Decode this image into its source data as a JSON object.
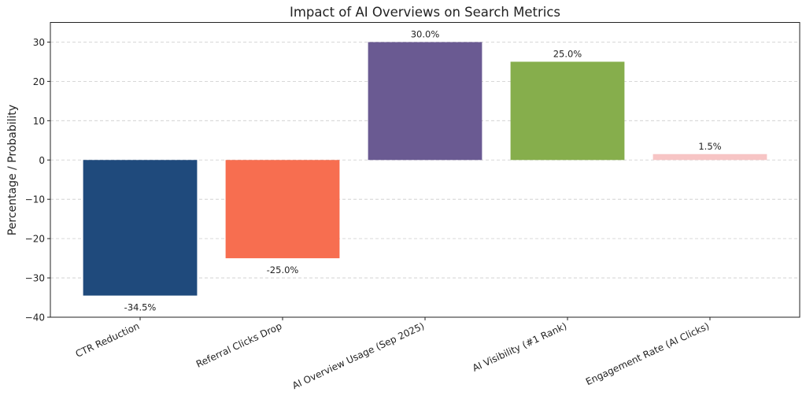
{
  "chart_data": {
    "type": "bar",
    "title": "Impact of AI Overviews on Search Metrics",
    "xlabel": "",
    "ylabel": "Percentage / Probability",
    "categories": [
      "CTR Reduction",
      "Referral Clicks Drop",
      "AI Overview Usage (Sep 2025)",
      "AI Visibility (#1 Rank)",
      "Engagement Rate (AI Clicks)"
    ],
    "values": [
      -34.5,
      -25.0,
      30.0,
      25.0,
      1.5
    ],
    "data_labels": [
      "-34.5%",
      "-25.0%",
      "30.0%",
      "25.0%",
      "1.5%"
    ],
    "colors": [
      "#1f4a7c",
      "#f76e50",
      "#6a5a92",
      "#86ae4c",
      "#f7c5c5"
    ],
    "ylim": [
      -40,
      35
    ],
    "yticks": [
      -40,
      -30,
      -20,
      -10,
      0,
      10,
      20,
      30
    ],
    "ytick_labels": [
      "−40",
      "−30",
      "−20",
      "−10",
      "0",
      "10",
      "20",
      "30"
    ],
    "grid": "y, dashed",
    "legend": "none"
  }
}
